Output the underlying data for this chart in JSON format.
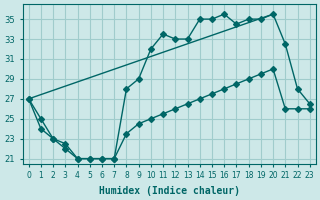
{
  "xlabel": "Humidex (Indice chaleur)",
  "background_color": "#cde8e8",
  "grid_color": "#a0cccc",
  "line_color": "#006666",
  "xlim": [
    -0.5,
    23.5
  ],
  "ylim": [
    20.5,
    36.5
  ],
  "xticks": [
    0,
    1,
    2,
    3,
    4,
    5,
    6,
    7,
    8,
    9,
    10,
    11,
    12,
    13,
    14,
    15,
    16,
    17,
    18,
    19,
    20,
    21,
    22,
    23
  ],
  "yticks": [
    21,
    23,
    25,
    27,
    29,
    31,
    33,
    35
  ],
  "line1_x": [
    0,
    1,
    2,
    3,
    4,
    5,
    6,
    7,
    8,
    9,
    10,
    11,
    12,
    13,
    14,
    15,
    16,
    17,
    18,
    19,
    20,
    21,
    22,
    23
  ],
  "line1_y": [
    27,
    25,
    23,
    22.5,
    21,
    21,
    21,
    21,
    28,
    29,
    32,
    33.5,
    33,
    33,
    35,
    35,
    35.5,
    34.5,
    35,
    35,
    35.5,
    32.5,
    28,
    26.5
  ],
  "line2_x": [
    0,
    1,
    2,
    3,
    4,
    5,
    6,
    7,
    8,
    9,
    10,
    11,
    12,
    13,
    14,
    15,
    16,
    17,
    18,
    19,
    20,
    21,
    22,
    23
  ],
  "line2_y": [
    27,
    24,
    23,
    22,
    21,
    21,
    21,
    21,
    23.5,
    24.5,
    25,
    25.5,
    26,
    26.5,
    27,
    27.5,
    28,
    28.5,
    29,
    29.5,
    30,
    26,
    26,
    26
  ],
  "line3_x": [
    0,
    20
  ],
  "line3_y": [
    27,
    35.5
  ],
  "marker": "D",
  "markersize": 3
}
